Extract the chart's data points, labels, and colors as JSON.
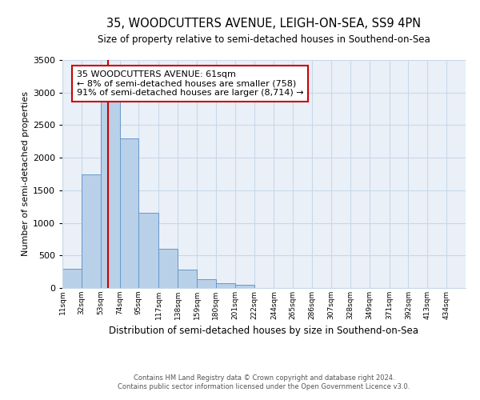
{
  "title": "35, WOODCUTTERS AVENUE, LEIGH-ON-SEA, SS9 4PN",
  "subtitle": "Size of property relative to semi-detached houses in Southend-on-Sea",
  "xlabel": "Distribution of semi-detached houses by size in Southend-on-Sea",
  "ylabel": "Number of semi-detached properties",
  "footnote": "Contains HM Land Registry data © Crown copyright and database right 2024.\nContains public sector information licensed under the Open Government Licence v3.0.",
  "bar_left_edges": [
    11,
    32,
    53,
    74,
    95,
    117,
    138,
    159,
    180,
    201,
    222,
    244,
    265,
    286,
    307,
    328,
    349,
    371,
    392,
    413
  ],
  "bar_widths": [
    21,
    21,
    21,
    21,
    22,
    21,
    21,
    21,
    21,
    21,
    22,
    21,
    21,
    21,
    21,
    21,
    22,
    21,
    21,
    21
  ],
  "bar_heights": [
    300,
    1750,
    2900,
    2300,
    1150,
    600,
    280,
    130,
    70,
    50,
    5,
    0,
    0,
    0,
    0,
    0,
    0,
    0,
    0,
    0
  ],
  "bar_color": "#b8d0e8",
  "bar_edge_color": "#6699cc",
  "grid_color": "#c8d8e8",
  "bg_color": "#eaf0f8",
  "property_line_x": 61,
  "property_line_color": "#cc0000",
  "annotation_text": "35 WOODCUTTERS AVENUE: 61sqm\n← 8% of semi-detached houses are smaller (758)\n91% of semi-detached houses are larger (8,714) →",
  "annotation_box_color": "#cc0000",
  "ylim": [
    0,
    3500
  ],
  "xlim_min": 11,
  "xlim_max": 455,
  "yticks": [
    0,
    500,
    1000,
    1500,
    2000,
    2500,
    3000,
    3500
  ],
  "tick_positions": [
    11,
    32,
    53,
    74,
    95,
    117,
    138,
    159,
    180,
    201,
    222,
    244,
    265,
    286,
    307,
    328,
    349,
    371,
    392,
    413,
    434
  ],
  "tick_labels": [
    "11sqm",
    "32sqm",
    "53sqm",
    "74sqm",
    "95sqm",
    "117sqm",
    "138sqm",
    "159sqm",
    "180sqm",
    "201sqm",
    "222sqm",
    "244sqm",
    "265sqm",
    "286sqm",
    "307sqm",
    "328sqm",
    "349sqm",
    "371sqm",
    "392sqm",
    "413sqm",
    "434sqm"
  ]
}
